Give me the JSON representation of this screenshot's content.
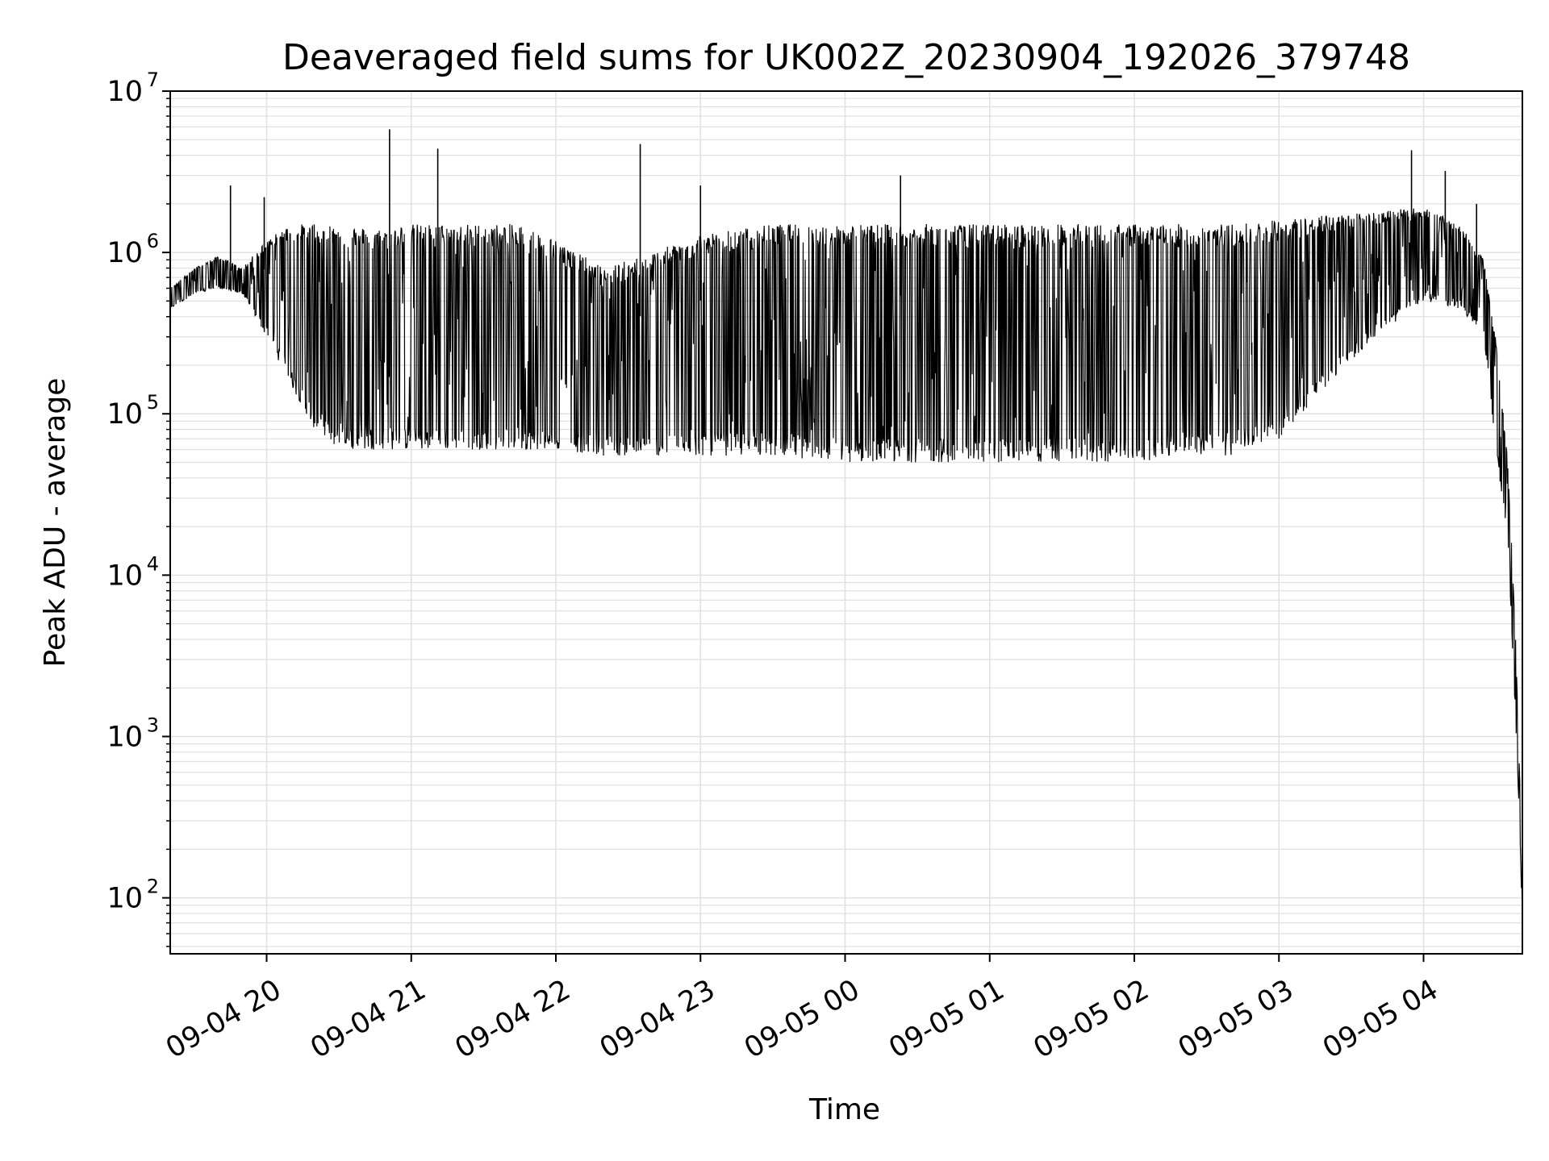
{
  "chart_data": {
    "type": "line",
    "title": "Deaveraged field sums for UK002Z_20230904_192026_379748",
    "xlabel": "Time",
    "ylabel": "Peak ADU - average",
    "yscale": "log",
    "grid": true,
    "legend": "none",
    "line_color": "#000000",
    "grid_color": "#e0e0e0",
    "xlim": [
      "2023-09-04 19:20",
      "2023-09-05 04:41"
    ],
    "ylim": [
      45,
      10000000
    ],
    "x_ticks": [
      "09-04 20",
      "09-04 21",
      "09-04 22",
      "09-04 23",
      "09-05 00",
      "09-05 01",
      "09-05 02",
      "09-05 03",
      "09-05 04"
    ],
    "y_ticks": [
      {
        "value": 100,
        "base": "10",
        "exp": "2"
      },
      {
        "value": 1000,
        "base": "10",
        "exp": "3"
      },
      {
        "value": 10000,
        "base": "10",
        "exp": "4"
      },
      {
        "value": 100000,
        "base": "10",
        "exp": "5"
      },
      {
        "value": 1000000,
        "base": "10",
        "exp": "6"
      },
      {
        "value": 10000000,
        "base": "10",
        "exp": "7"
      }
    ],
    "series": [
      {
        "type": "envelope",
        "note": "dense signal oscillating between lower and upper envelope",
        "x": [
          "2023-09-04 19:20",
          "2023-09-04 19:30",
          "2023-09-04 19:40",
          "2023-09-04 19:50",
          "2023-09-04 20:00",
          "2023-09-04 20:10",
          "2023-09-04 20:20",
          "2023-09-04 20:30",
          "2023-09-04 20:45",
          "2023-09-04 21:00",
          "2023-09-04 21:15",
          "2023-09-04 21:30",
          "2023-09-04 21:45",
          "2023-09-04 22:00",
          "2023-09-04 22:20",
          "2023-09-04 22:40",
          "2023-09-04 23:00",
          "2023-09-04 23:30",
          "2023-09-05 00:00",
          "2023-09-05 00:30",
          "2023-09-05 01:00",
          "2023-09-05 01:30",
          "2023-09-05 02:00",
          "2023-09-05 02:20",
          "2023-09-05 02:40",
          "2023-09-05 03:00",
          "2023-09-05 03:20",
          "2023-09-05 03:40",
          "2023-09-05 04:00",
          "2023-09-05 04:15",
          "2023-09-05 04:25",
          "2023-09-05 04:30",
          "2023-09-05 04:35",
          "2023-09-05 04:38",
          "2023-09-05 04:40",
          "2023-09-05 04:41"
        ],
        "lower": [
          450000,
          550000,
          600000,
          550000,
          300000,
          150000,
          80000,
          60000,
          60000,
          60000,
          60000,
          60000,
          60000,
          60000,
          55000,
          55000,
          55000,
          55000,
          50000,
          50000,
          50000,
          50000,
          50000,
          55000,
          55000,
          70000,
          150000,
          300000,
          500000,
          450000,
          300000,
          60000,
          15000,
          1500,
          250,
          60
        ],
        "upper": [
          600000,
          800000,
          950000,
          800000,
          1200000,
          1500000,
          1500000,
          1500000,
          1400000,
          1500000,
          1500000,
          1500000,
          1500000,
          1200000,
          800000,
          1000000,
          1300000,
          1500000,
          1500000,
          1500000,
          1500000,
          1500000,
          1500000,
          1500000,
          1500000,
          1600000,
          1700000,
          1800000,
          1900000,
          1500000,
          900000,
          300000,
          50000,
          5000,
          500,
          80
        ]
      },
      {
        "type": "spikes",
        "x": [
          "2023-09-04 19:45",
          "2023-09-04 19:59",
          "2023-09-04 20:51",
          "2023-09-04 21:11",
          "2023-09-04 22:35",
          "2023-09-04 23:00",
          "2023-09-05 00:23",
          "2023-09-05 03:55",
          "2023-09-05 04:09",
          "2023-09-05 04:22"
        ],
        "values": [
          2600000,
          2200000,
          5800000,
          4400000,
          4700000,
          2600000,
          3000000,
          4300000,
          3200000,
          2000000
        ]
      }
    ]
  }
}
